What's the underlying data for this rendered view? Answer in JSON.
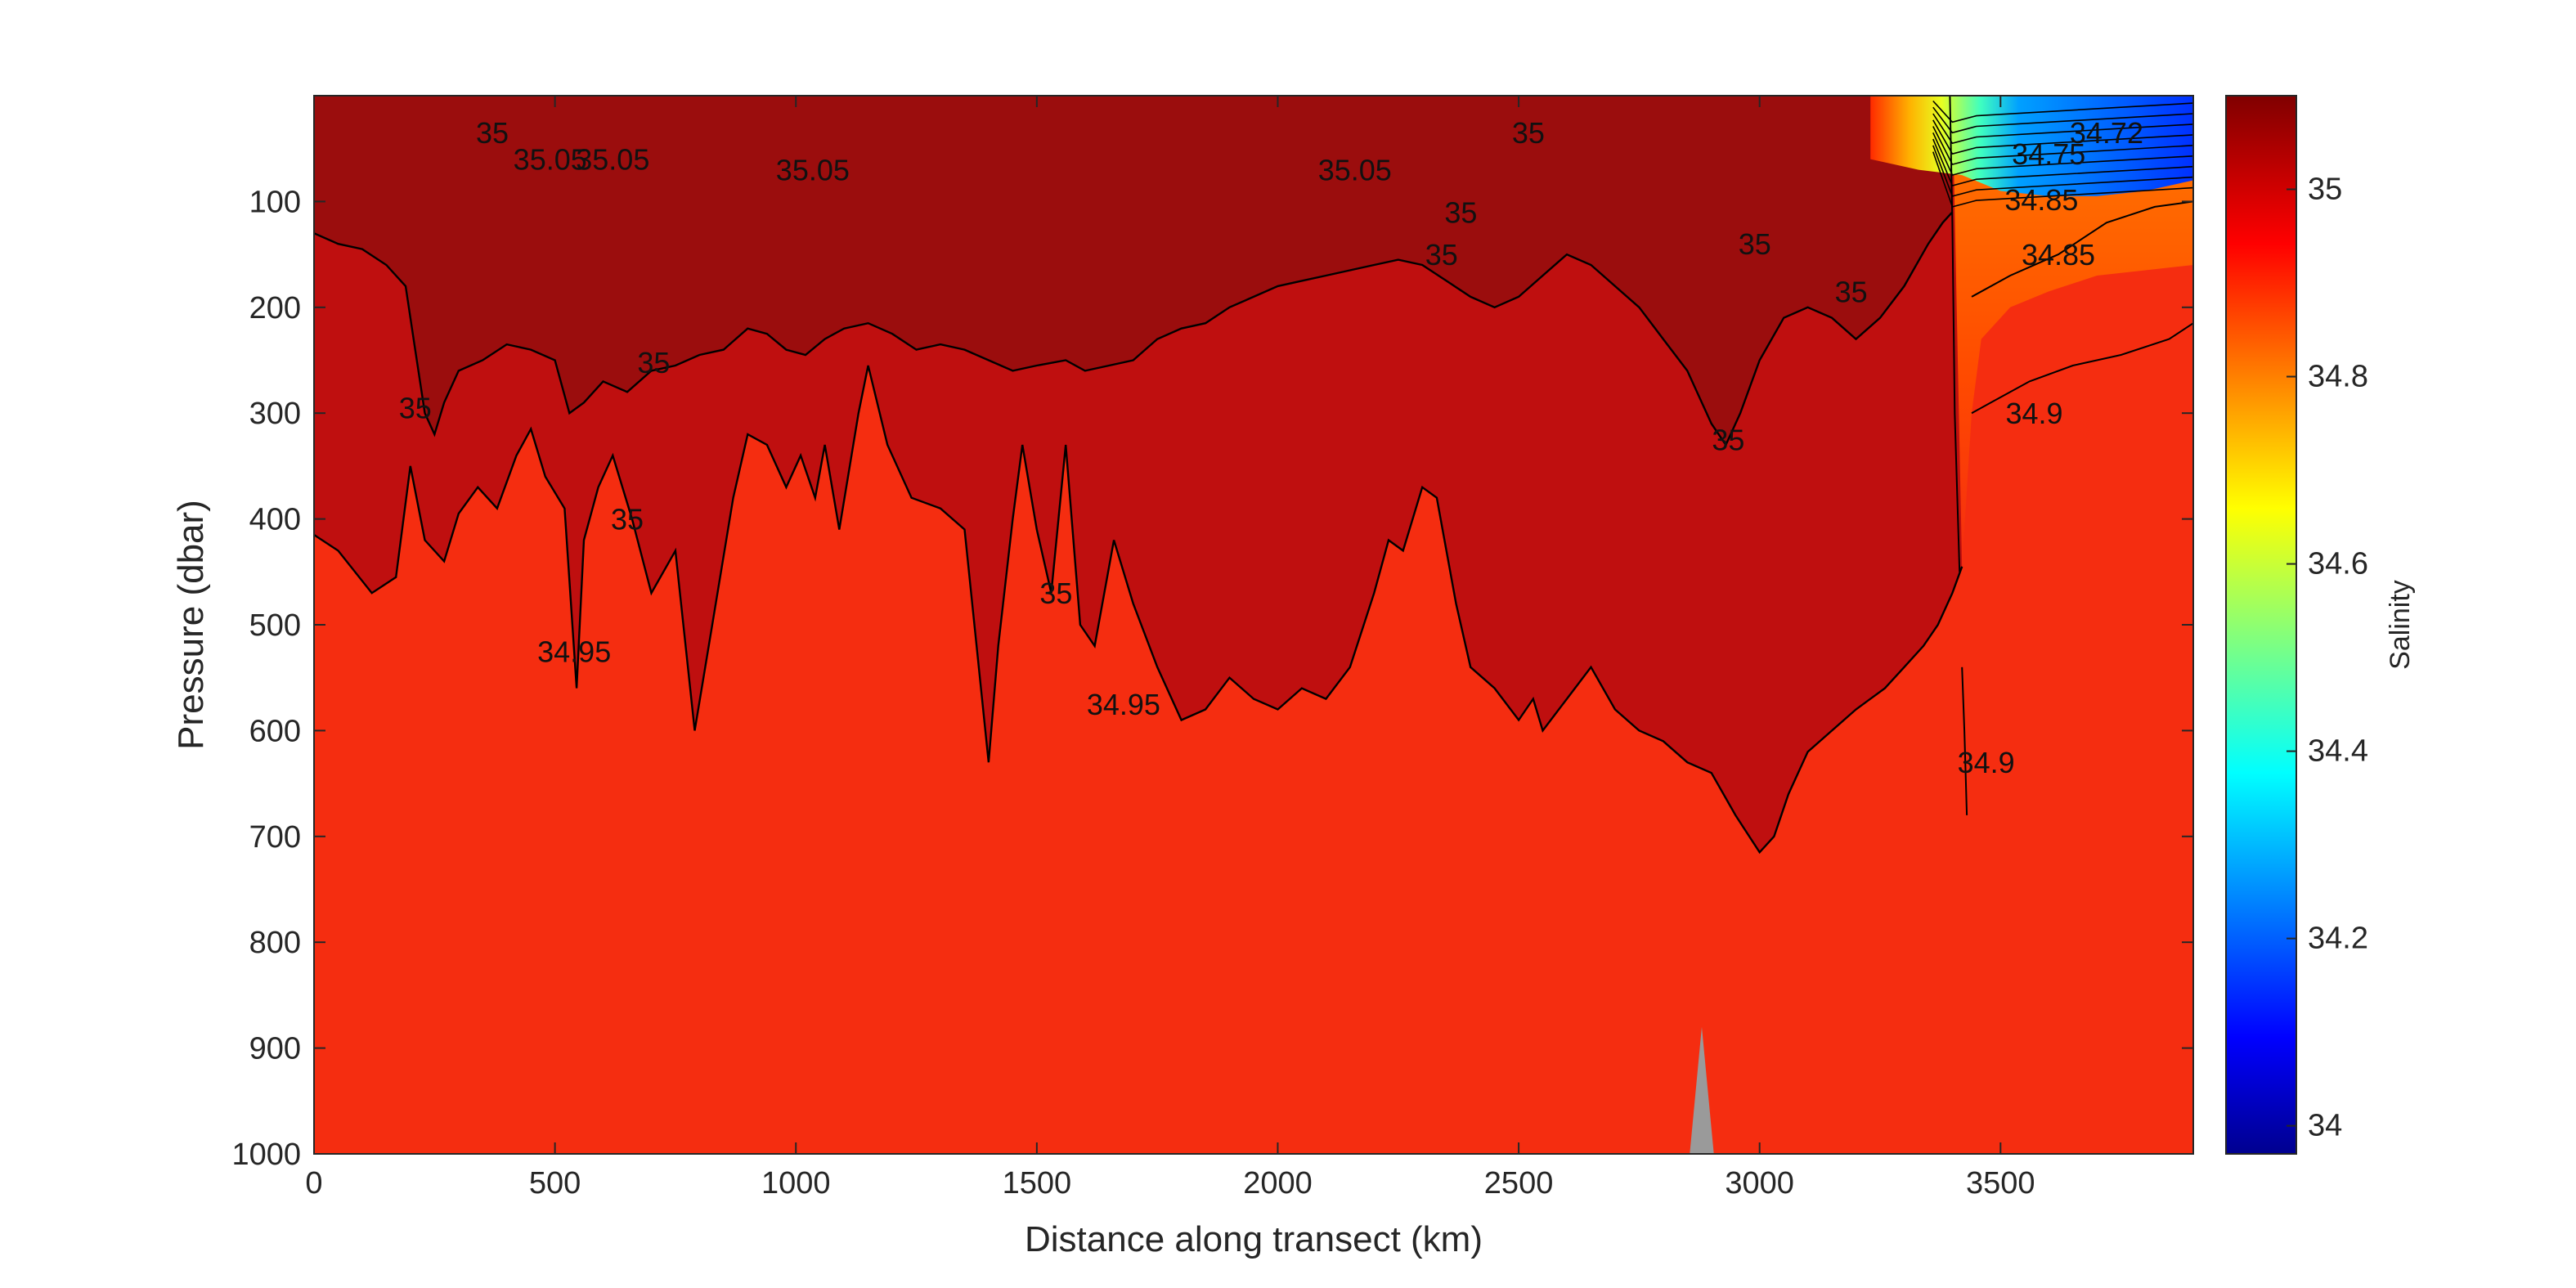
{
  "chart_data": {
    "type": "heatmap",
    "title": "",
    "xlabel": "Distance along transect (km)",
    "ylabel": "Pressure (dbar)",
    "colorbar_label": "Salinity",
    "xlim": [
      0,
      3900
    ],
    "ylim": [
      1000,
      0
    ],
    "clim": [
      33.97,
      35.1
    ],
    "x_ticks": [
      {
        "value": 0,
        "label": "0"
      },
      {
        "value": 500,
        "label": "500"
      },
      {
        "value": 1000,
        "label": "1000"
      },
      {
        "value": 1500,
        "label": "1500"
      },
      {
        "value": 2000,
        "label": "2000"
      },
      {
        "value": 2500,
        "label": "2500"
      },
      {
        "value": 3000,
        "label": "3000"
      },
      {
        "value": 3500,
        "label": "3500"
      }
    ],
    "y_ticks": [
      {
        "value": 100,
        "label": "100"
      },
      {
        "value": 200,
        "label": "200"
      },
      {
        "value": 300,
        "label": "300"
      },
      {
        "value": 400,
        "label": "400"
      },
      {
        "value": 500,
        "label": "500"
      },
      {
        "value": 600,
        "label": "600"
      },
      {
        "value": 700,
        "label": "700"
      },
      {
        "value": 800,
        "label": "800"
      },
      {
        "value": 900,
        "label": "900"
      },
      {
        "value": 1000,
        "label": "1000"
      }
    ],
    "colorbar_ticks": [
      {
        "value": 34.0,
        "label": "34"
      },
      {
        "value": 34.2,
        "label": "34.2"
      },
      {
        "value": 34.4,
        "label": "34.4"
      },
      {
        "value": 34.6,
        "label": "34.6"
      },
      {
        "value": 34.8,
        "label": "34.8"
      },
      {
        "value": 35.0,
        "label": "35"
      }
    ],
    "colors": {
      "c35_05": "#9b0d0d",
      "c35_00": "#bf0f0f",
      "c34_95": "#d31612",
      "c34_93": "#ee2a12",
      "deep": "#f52d10",
      "bathymetry": "#9a9a9a",
      "contour": "#000000"
    },
    "contour_34_95": [
      [
        0,
        415
      ],
      [
        50,
        430
      ],
      [
        120,
        470
      ],
      [
        170,
        455
      ],
      [
        200,
        350
      ],
      [
        230,
        420
      ],
      [
        270,
        440
      ],
      [
        300,
        395
      ],
      [
        340,
        370
      ],
      [
        380,
        390
      ],
      [
        420,
        340
      ],
      [
        450,
        315
      ],
      [
        480,
        360
      ],
      [
        520,
        390
      ],
      [
        545,
        560
      ],
      [
        560,
        420
      ],
      [
        590,
        370
      ],
      [
        620,
        340
      ],
      [
        660,
        400
      ],
      [
        700,
        470
      ],
      [
        750,
        430
      ],
      [
        790,
        600
      ],
      [
        830,
        490
      ],
      [
        870,
        380
      ],
      [
        900,
        320
      ],
      [
        940,
        330
      ],
      [
        980,
        370
      ],
      [
        1010,
        340
      ],
      [
        1040,
        380
      ],
      [
        1060,
        330
      ],
      [
        1090,
        410
      ],
      [
        1130,
        300
      ],
      [
        1150,
        255
      ],
      [
        1190,
        330
      ],
      [
        1240,
        380
      ],
      [
        1300,
        390
      ],
      [
        1350,
        410
      ],
      [
        1400,
        630
      ],
      [
        1420,
        520
      ],
      [
        1450,
        400
      ],
      [
        1470,
        330
      ],
      [
        1500,
        410
      ],
      [
        1530,
        470
      ],
      [
        1560,
        330
      ],
      [
        1590,
        500
      ],
      [
        1620,
        520
      ],
      [
        1660,
        420
      ],
      [
        1700,
        480
      ],
      [
        1750,
        540
      ],
      [
        1800,
        590
      ],
      [
        1850,
        580
      ],
      [
        1900,
        550
      ],
      [
        1950,
        570
      ],
      [
        2000,
        580
      ],
      [
        2050,
        560
      ],
      [
        2100,
        570
      ],
      [
        2150,
        540
      ],
      [
        2200,
        470
      ],
      [
        2230,
        420
      ],
      [
        2260,
        430
      ],
      [
        2300,
        370
      ],
      [
        2330,
        380
      ],
      [
        2370,
        480
      ],
      [
        2400,
        540
      ],
      [
        2450,
        560
      ],
      [
        2500,
        590
      ],
      [
        2530,
        570
      ],
      [
        2550,
        600
      ],
      [
        2600,
        570
      ],
      [
        2650,
        540
      ],
      [
        2700,
        580
      ],
      [
        2750,
        600
      ],
      [
        2800,
        610
      ],
      [
        2850,
        630
      ],
      [
        2900,
        640
      ],
      [
        2950,
        680
      ],
      [
        3000,
        715
      ],
      [
        3030,
        700
      ],
      [
        3060,
        660
      ],
      [
        3100,
        620
      ],
      [
        3150,
        600
      ],
      [
        3200,
        580
      ],
      [
        3260,
        560
      ],
      [
        3300,
        540
      ],
      [
        3340,
        520
      ],
      [
        3370,
        500
      ],
      [
        3400,
        470
      ],
      [
        3420,
        445
      ]
    ],
    "contour_35_00": [
      [
        0,
        130
      ],
      [
        50,
        140
      ],
      [
        100,
        145
      ],
      [
        150,
        160
      ],
      [
        190,
        180
      ],
      [
        210,
        240
      ],
      [
        230,
        300
      ],
      [
        250,
        320
      ],
      [
        270,
        290
      ],
      [
        300,
        260
      ],
      [
        350,
        250
      ],
      [
        400,
        235
      ],
      [
        450,
        240
      ],
      [
        500,
        250
      ],
      [
        530,
        300
      ],
      [
        560,
        290
      ],
      [
        600,
        270
      ],
      [
        650,
        280
      ],
      [
        700,
        260
      ],
      [
        750,
        255
      ],
      [
        800,
        245
      ],
      [
        850,
        240
      ],
      [
        900,
        220
      ],
      [
        940,
        225
      ],
      [
        980,
        240
      ],
      [
        1020,
        245
      ],
      [
        1060,
        230
      ],
      [
        1100,
        220
      ],
      [
        1150,
        215
      ],
      [
        1200,
        225
      ],
      [
        1250,
        240
      ],
      [
        1300,
        235
      ],
      [
        1350,
        240
      ],
      [
        1400,
        250
      ],
      [
        1450,
        260
      ],
      [
        1500,
        255
      ],
      [
        1560,
        250
      ],
      [
        1600,
        260
      ],
      [
        1650,
        255
      ],
      [
        1700,
        250
      ],
      [
        1750,
        230
      ],
      [
        1800,
        220
      ],
      [
        1850,
        215
      ],
      [
        1900,
        200
      ],
      [
        1950,
        190
      ],
      [
        2000,
        180
      ],
      [
        2050,
        175
      ],
      [
        2100,
        170
      ],
      [
        2150,
        165
      ],
      [
        2200,
        160
      ],
      [
        2250,
        155
      ],
      [
        2300,
        160
      ],
      [
        2350,
        175
      ],
      [
        2400,
        190
      ],
      [
        2450,
        200
      ],
      [
        2500,
        190
      ],
      [
        2550,
        170
      ],
      [
        2600,
        150
      ],
      [
        2650,
        160
      ],
      [
        2700,
        180
      ],
      [
        2750,
        200
      ],
      [
        2800,
        230
      ],
      [
        2850,
        260
      ],
      [
        2900,
        310
      ],
      [
        2930,
        330
      ],
      [
        2960,
        300
      ],
      [
        3000,
        250
      ],
      [
        3050,
        210
      ],
      [
        3100,
        200
      ],
      [
        3150,
        210
      ],
      [
        3200,
        230
      ],
      [
        3250,
        210
      ],
      [
        3300,
        180
      ],
      [
        3350,
        140
      ],
      [
        3380,
        120
      ],
      [
        3400,
        110
      ]
    ],
    "contour_labels": [
      {
        "text": "35",
        "x": 370,
        "y": 45
      },
      {
        "text": "35.05",
        "x": 490,
        "y": 70
      },
      {
        "text": "35.05",
        "x": 620,
        "y": 70
      },
      {
        "text": "35.05",
        "x": 1035,
        "y": 80
      },
      {
        "text": "35.05",
        "x": 2160,
        "y": 80
      },
      {
        "text": "35",
        "x": 2520,
        "y": 45
      },
      {
        "text": "35",
        "x": 2380,
        "y": 120
      },
      {
        "text": "35",
        "x": 2340,
        "y": 160
      },
      {
        "text": "35",
        "x": 2990,
        "y": 150
      },
      {
        "text": "35",
        "x": 3190,
        "y": 195
      },
      {
        "text": "35",
        "x": 705,
        "y": 262
      },
      {
        "text": "35",
        "x": 210,
        "y": 305
      },
      {
        "text": "35",
        "x": 650,
        "y": 410
      },
      {
        "text": "35",
        "x": 1540,
        "y": 480
      },
      {
        "text": "35",
        "x": 2935,
        "y": 335
      },
      {
        "text": "34.95",
        "x": 540,
        "y": 535
      },
      {
        "text": "34.95",
        "x": 1680,
        "y": 585
      },
      {
        "text": "34.9",
        "x": 3470,
        "y": 640
      },
      {
        "text": "34.9",
        "x": 3570,
        "y": 310
      },
      {
        "text": "34.85",
        "x": 3620,
        "y": 160
      },
      {
        "text": "34.85",
        "x": 3585,
        "y": 108
      },
      {
        "text": "34.75",
        "x": 3600,
        "y": 65
      },
      {
        "text": "34.72",
        "x": 3720,
        "y": 45
      }
    ]
  }
}
